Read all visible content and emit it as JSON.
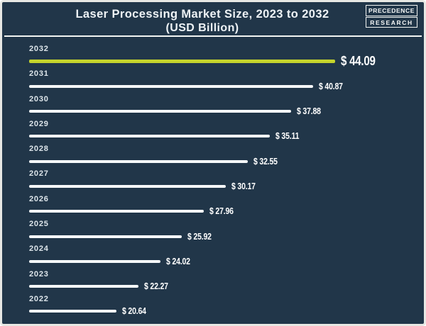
{
  "header": {
    "title_line1": "Laser Processing Market Size, 2023 to 2032",
    "title_line2": "(USD Billion)",
    "brand": {
      "line1": "PRECEDENCE",
      "line2": "RESEARCH"
    }
  },
  "chart_data": {
    "type": "bar",
    "orientation": "horizontal",
    "title": "Laser Processing Market Size, 2023 to 2032 (USD Billion)",
    "unit": "USD Billion",
    "categories": [
      "2032",
      "2031",
      "2030",
      "2029",
      "2028",
      "2027",
      "2026",
      "2025",
      "2024",
      "2023",
      "2022"
    ],
    "values": [
      44.09,
      40.87,
      37.88,
      35.11,
      32.55,
      30.17,
      27.96,
      25.92,
      24.02,
      22.27,
      20.64
    ],
    "value_labels": [
      "$ 44.09",
      "$ 40.87",
      "$ 37.88",
      "$ 35.11",
      "$ 32.55",
      "$ 30.17",
      "$ 27.96",
      "$ 25.92",
      "$ 24.02",
      "$ 22.27",
      "$ 20.64"
    ],
    "highlight_category": "2032",
    "legend": null,
    "grid": false,
    "colors": {
      "background": "#213649",
      "bar": "#f7fafb",
      "highlight_bar": "#c5d42c",
      "text": "#ffffff",
      "frame_border": "#e7e8e4"
    }
  }
}
